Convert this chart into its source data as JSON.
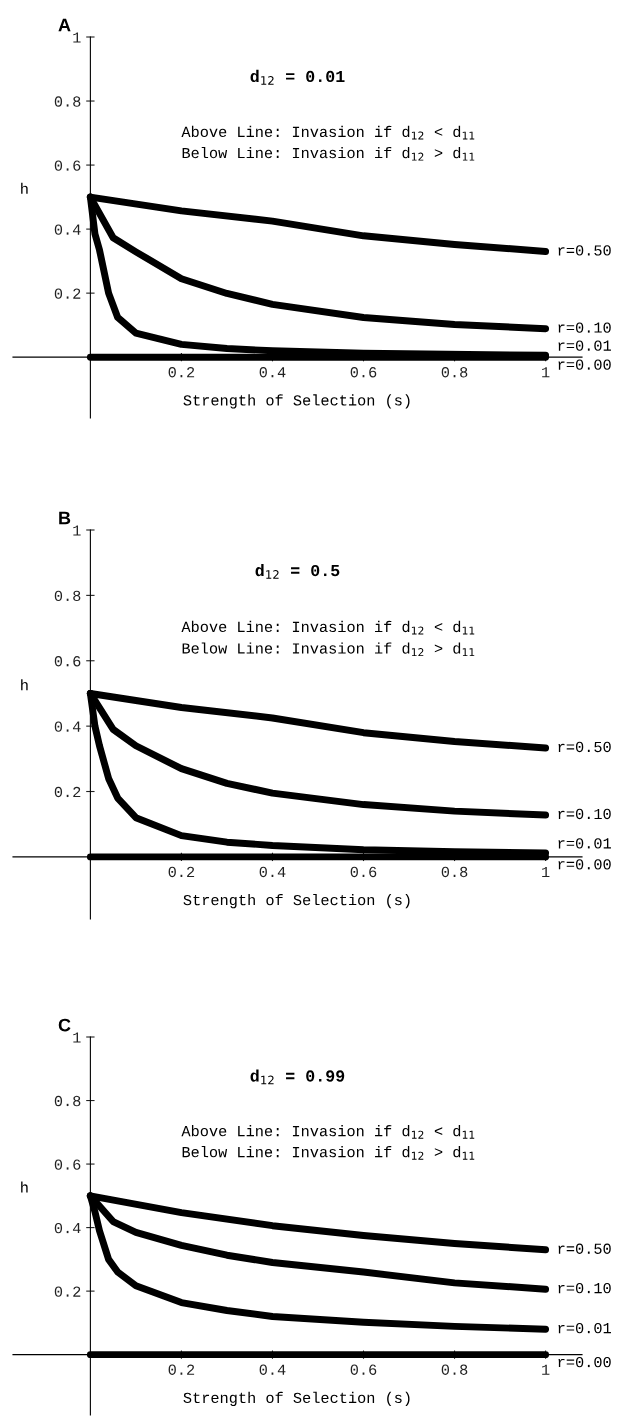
{
  "chart_data": [
    {
      "type": "line",
      "title": "d$_{12}$ = 0.01",
      "xlabel": "Strength of Selection (s)",
      "ylabel": "h",
      "xlim": [
        -0.17,
        1.08
      ],
      "ylim": [
        -0.19,
        1
      ],
      "xticks": [
        0.2,
        0.4,
        0.6,
        0.8,
        1
      ],
      "yticks": [
        0.2,
        0.4,
        0.6,
        0.8,
        1
      ],
      "grid": false,
      "legend": false,
      "marker": "none",
      "line_style": "solid",
      "annotations": [
        "A",
        "Above Line: Invasion if d$_{12}$ < d$_{11}$",
        "Below Line: Invasion if d$_{12}$ > d$_{11}$"
      ],
      "series": [
        {
          "name": "r=0.50",
          "color": "#000000",
          "x": [
            0,
            0.2,
            0.4,
            0.6,
            0.8,
            1
          ],
          "values": [
            0.5,
            0.457,
            0.425,
            0.379,
            0.352,
            0.33
          ]
        },
        {
          "name": "r=0.10",
          "color": "#000000",
          "x": [
            0,
            0.05,
            0.1,
            0.2,
            0.3,
            0.4,
            0.6,
            0.8,
            1
          ],
          "values": [
            0.5,
            0.373,
            0.329,
            0.245,
            0.199,
            0.165,
            0.124,
            0.102,
            0.089
          ]
        },
        {
          "name": "r=0.01",
          "color": "#000000",
          "x": [
            0,
            0.01,
            0.02,
            0.04,
            0.06,
            0.1,
            0.2,
            0.3,
            0.4,
            0.6,
            1
          ],
          "values": [
            0.5,
            0.385,
            0.335,
            0.2,
            0.124,
            0.075,
            0.04,
            0.027,
            0.02,
            0.012,
            0.006
          ]
        },
        {
          "name": "r=0.00",
          "color": "#000000",
          "x": [
            0,
            1
          ],
          "values": [
            0,
            0
          ]
        }
      ]
    },
    {
      "type": "line",
      "title": "d$_{12}$ = 0.5",
      "xlabel": "Strength of Selection (s)",
      "ylabel": "h",
      "xlim": [
        -0.17,
        1.08
      ],
      "ylim": [
        -0.19,
        1
      ],
      "xticks": [
        0.2,
        0.4,
        0.6,
        0.8,
        1
      ],
      "yticks": [
        0.2,
        0.4,
        0.6,
        0.8,
        1
      ],
      "grid": false,
      "legend": false,
      "marker": "none",
      "line_style": "solid",
      "annotations": [
        "B",
        "Above Line: Invasion if d$_{12}$ < d$_{11}$",
        "Below Line: Invasion if d$_{12}$ > d$_{11}$"
      ],
      "series": [
        {
          "name": "r=0.50",
          "color": "#000000",
          "x": [
            0,
            0.2,
            0.4,
            0.6,
            0.8,
            1
          ],
          "values": [
            0.5,
            0.457,
            0.425,
            0.38,
            0.353,
            0.333
          ]
        },
        {
          "name": "r=0.10",
          "color": "#000000",
          "x": [
            0,
            0.05,
            0.1,
            0.2,
            0.3,
            0.4,
            0.6,
            0.8,
            1
          ],
          "values": [
            0.5,
            0.39,
            0.34,
            0.27,
            0.225,
            0.195,
            0.16,
            0.14,
            0.128
          ]
        },
        {
          "name": "r=0.01",
          "color": "#000000",
          "x": [
            0,
            0.01,
            0.02,
            0.04,
            0.06,
            0.1,
            0.2,
            0.3,
            0.4,
            0.6,
            0.8,
            1
          ],
          "values": [
            0.5,
            0.4,
            0.34,
            0.24,
            0.18,
            0.12,
            0.065,
            0.045,
            0.035,
            0.022,
            0.016,
            0.012
          ]
        },
        {
          "name": "r=0.00",
          "color": "#000000",
          "x": [
            0,
            1
          ],
          "values": [
            0,
            0
          ]
        }
      ]
    },
    {
      "type": "line",
      "title": "d$_{12}$ = 0.99",
      "xlabel": "Strength of Selection (s)",
      "ylabel": "h",
      "xlim": [
        -0.17,
        1.08
      ],
      "ylim": [
        -0.19,
        1
      ],
      "xticks": [
        0.2,
        0.4,
        0.6,
        0.8,
        1
      ],
      "yticks": [
        0.2,
        0.4,
        0.6,
        0.8,
        1
      ],
      "grid": false,
      "legend": false,
      "marker": "none",
      "line_style": "solid",
      "annotations": [
        "C",
        "Above Line: Invasion if d$_{12}$ < d$_{11}$",
        "Below Line: Invasion if d$_{12}$ > d$_{11}$"
      ],
      "series": [
        {
          "name": "r=0.50",
          "color": "#000000",
          "x": [
            0,
            0.2,
            0.4,
            0.6,
            0.8,
            1
          ],
          "values": [
            0.5,
            0.447,
            0.406,
            0.375,
            0.35,
            0.33
          ]
        },
        {
          "name": "r=0.10",
          "color": "#000000",
          "x": [
            0,
            0.05,
            0.1,
            0.2,
            0.3,
            0.4,
            0.6,
            0.8,
            1
          ],
          "values": [
            0.5,
            0.419,
            0.385,
            0.344,
            0.313,
            0.29,
            0.26,
            0.226,
            0.206
          ]
        },
        {
          "name": "r=0.01",
          "color": "#000000",
          "x": [
            0,
            0.01,
            0.02,
            0.04,
            0.06,
            0.1,
            0.2,
            0.3,
            0.4,
            0.6,
            0.8,
            1
          ],
          "values": [
            0.5,
            0.45,
            0.39,
            0.3,
            0.26,
            0.217,
            0.164,
            0.139,
            0.12,
            0.102,
            0.089,
            0.08
          ]
        },
        {
          "name": "r=0.00",
          "color": "#000000",
          "x": [
            0,
            1
          ],
          "values": [
            0,
            0
          ]
        }
      ]
    }
  ]
}
